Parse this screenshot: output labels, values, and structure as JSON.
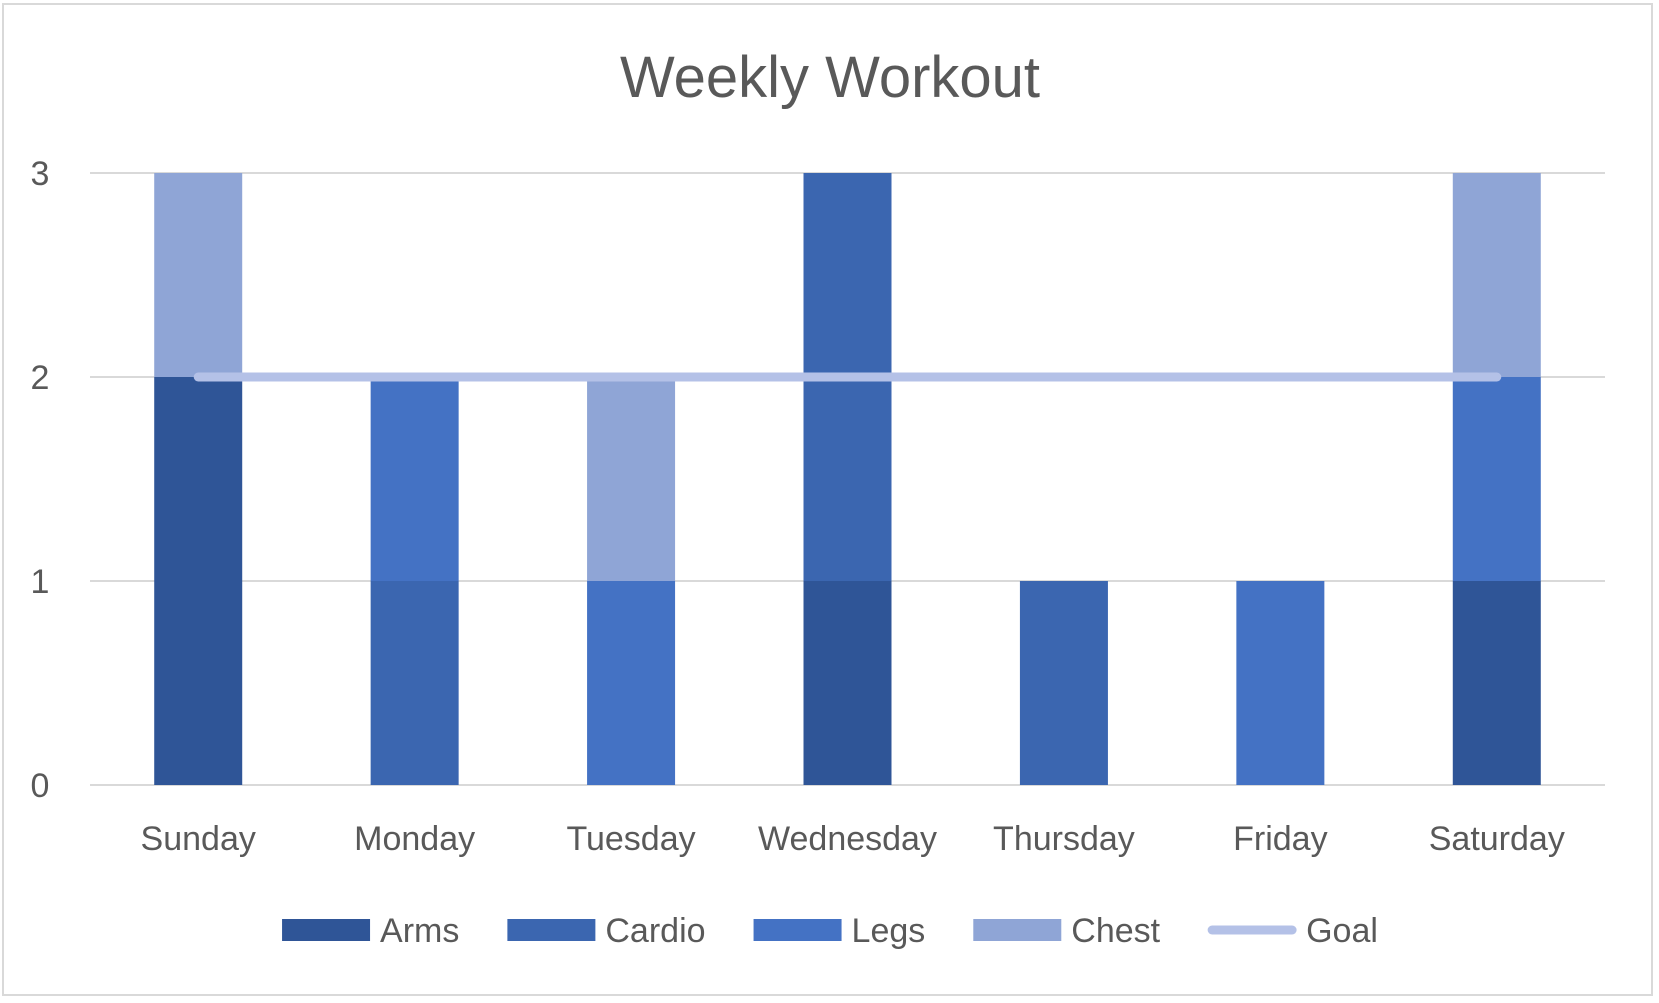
{
  "chart_data": {
    "type": "bar",
    "stacked": true,
    "title": "Weekly Workout",
    "xlabel": "",
    "ylabel": "",
    "categories": [
      "Sunday",
      "Monday",
      "Tuesday",
      "Wednesday",
      "Thursday",
      "Friday",
      "Saturday"
    ],
    "series": [
      {
        "name": "Arms",
        "kind": "bar",
        "color": "#2F5597",
        "values": [
          2,
          0,
          0,
          1,
          0,
          0,
          1
        ]
      },
      {
        "name": "Cardio",
        "kind": "bar",
        "color": "#3B66B0",
        "values": [
          0,
          1,
          0,
          2,
          1,
          0,
          0
        ]
      },
      {
        "name": "Legs",
        "kind": "bar",
        "color": "#4472C4",
        "values": [
          0,
          1,
          1,
          0,
          0,
          1,
          1
        ]
      },
      {
        "name": "Chest",
        "kind": "bar",
        "color": "#8FA5D6",
        "values": [
          1,
          0,
          1,
          0,
          0,
          0,
          1
        ]
      },
      {
        "name": "Goal",
        "kind": "line",
        "color": "#B4C1E7",
        "values": [
          2,
          2,
          2,
          2,
          2,
          2,
          2
        ]
      }
    ],
    "ylim": [
      0,
      3
    ],
    "yticks": [
      "0",
      "1",
      "2",
      "3"
    ],
    "grid": true,
    "legend": "bottom"
  }
}
